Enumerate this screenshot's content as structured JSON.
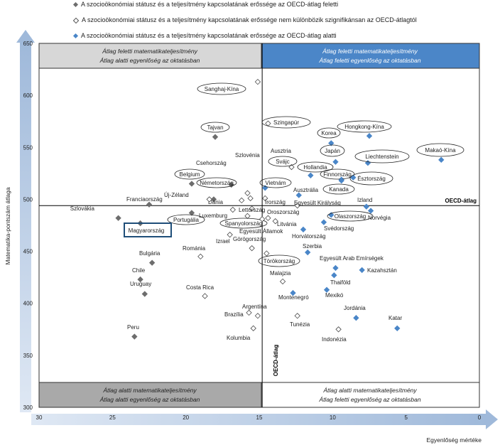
{
  "legend": [
    {
      "text": "A szocioökonómiai státusz és a teljesítmény kapcsolatának erőssége az OECD-átlag feletti",
      "color": "#6d6d6d"
    },
    {
      "text": "A szocioökonómiai státusz és a teljesítmény kapcsolatának erőssége nem különbözik szignifikánsan az OECD-átlagtól",
      "color": "#ffffff"
    },
    {
      "text": "A szocioökonómiai státusz és a teljesítmény kapcsolatának erőssége az OECD-átlag alatti",
      "color": "#4a86c8"
    }
  ],
  "quadrants": {
    "top_left": [
      "Átlag feletti matematikateljesítmény",
      "Átlag alatti egyenlőség az oktatásban"
    ],
    "top_right": [
      "Átlag feletti matematikateljesítmény",
      "Átlag feletti egyenlőség  az oktatásban"
    ],
    "bottom_left": [
      "Átlag alatti matematikateljesítmény",
      "Átlag alatti egyenlőség az oktatásban"
    ],
    "bottom_right": [
      "Átlag alatti matematikateljesítmény",
      "Átlag feletti egyenlőség  az oktatásban"
    ]
  },
  "chart_data": {
    "type": "scatter",
    "xlabel": "Egyenlőség mértéke",
    "ylabel": "Matematika-pontszám  átlaga",
    "xlim": [
      30,
      0
    ],
    "ylim": [
      300,
      650
    ],
    "x_ticks": [
      "30",
      "25",
      "20",
      "15",
      "10",
      "5",
      "0"
    ],
    "y_ticks": [
      "300",
      "350",
      "400",
      "450",
      "500",
      "550",
      "600",
      "650"
    ],
    "reference_lines": {
      "oecd_mean_score": {
        "value": 494,
        "label": "OECD-átlag"
      },
      "oecd_mean_equity": {
        "value": 14.8,
        "label": "OECD-átlag"
      }
    },
    "highlight": "Magyarország",
    "series": [
      {
        "category": "above",
        "points": [
          {
            "label": "Szlovákia",
            "x": 24.6,
            "y": 482
          },
          {
            "label": "Magyarország",
            "x": 23.1,
            "y": 477
          },
          {
            "label": "Franciaország",
            "x": 22.5,
            "y": 495
          },
          {
            "label": "Bulgária",
            "x": 22.3,
            "y": 439
          },
          {
            "label": "Chile",
            "x": 23.1,
            "y": 423
          },
          {
            "label": "Uruguay",
            "x": 22.8,
            "y": 409
          },
          {
            "label": "Peru",
            "x": 23.5,
            "y": 368
          },
          {
            "label": "Tajvan",
            "x": 18.0,
            "y": 560
          },
          {
            "label": "Belgium",
            "x": 19.6,
            "y": 515
          },
          {
            "label": "Portugália",
            "x": 19.6,
            "y": 487
          },
          {
            "label": "Dánia",
            "x": 18.1,
            "y": 500
          },
          {
            "label": "Németország",
            "x": 16.9,
            "y": 514
          }
        ]
      },
      {
        "category": "not_different",
        "points": [
          {
            "label": "Sanghaj-Kína",
            "x": 15.1,
            "y": 613
          },
          {
            "label": "Szingapúr",
            "x": 14.4,
            "y": 573
          },
          {
            "label": "Szlovénia",
            "x": 15.6,
            "y": 501
          },
          {
            "label": "Csehország",
            "x": 16.2,
            "y": 499
          },
          {
            "label": "Ausztria",
            "x": 15.8,
            "y": 506
          },
          {
            "label": "Svájc",
            "x": 12.8,
            "y": 531
          },
          {
            "label": "Új-Zéland",
            "x": 18.4,
            "y": 500
          },
          {
            "label": "Luxemburg",
            "x": 16.8,
            "y": 490
          },
          {
            "label": "Lettország",
            "x": 15.5,
            "y": 491
          },
          {
            "label": "Írország",
            "x": 14.6,
            "y": 501
          },
          {
            "label": "Oroszország",
            "x": 14.4,
            "y": 482
          },
          {
            "label": "Spanyolország",
            "x": 15.8,
            "y": 484
          },
          {
            "label": "Izrael",
            "x": 17.0,
            "y": 466
          },
          {
            "label": "Egyesült Államok",
            "x": 14.8,
            "y": 481
          },
          {
            "label": "Görögország",
            "x": 15.5,
            "y": 453
          },
          {
            "label": "Románia",
            "x": 19.0,
            "y": 445
          },
          {
            "label": "Litvánia",
            "x": 13.9,
            "y": 479
          },
          {
            "label": "Törökország",
            "x": 14.5,
            "y": 448
          },
          {
            "label": "Egyesült Királyság",
            "x": 12.4,
            "y": 494
          },
          {
            "label": "Malajzia",
            "x": 13.4,
            "y": 421
          },
          {
            "label": "Costa Rica",
            "x": 18.7,
            "y": 407
          },
          {
            "label": "Argentína",
            "x": 15.1,
            "y": 388
          },
          {
            "label": "Brazília",
            "x": 15.7,
            "y": 391
          },
          {
            "label": "Kolumbia",
            "x": 15.4,
            "y": 376
          },
          {
            "label": "Tunézia",
            "x": 12.4,
            "y": 388
          },
          {
            "label": "Indonézia",
            "x": 9.6,
            "y": 375
          }
        ]
      },
      {
        "category": "below",
        "points": [
          {
            "label": "Korea",
            "x": 10.1,
            "y": 554
          },
          {
            "label": "Hongkong-Kína",
            "x": 7.5,
            "y": 561
          },
          {
            "label": "Japán",
            "x": 9.8,
            "y": 536
          },
          {
            "label": "Liechtenstein",
            "x": 7.6,
            "y": 535
          },
          {
            "label": "Makaó-Kína",
            "x": 2.6,
            "y": 538
          },
          {
            "label": "Hollandia",
            "x": 11.5,
            "y": 523
          },
          {
            "label": "Finnország",
            "x": 9.4,
            "y": 519
          },
          {
            "label": "Észtország",
            "x": 8.6,
            "y": 521
          },
          {
            "label": "Kanada",
            "x": 9.4,
            "y": 518
          },
          {
            "label": "Vietnám",
            "x": 14.6,
            "y": 511
          },
          {
            "label": "Ausztrália",
            "x": 12.3,
            "y": 504
          },
          {
            "label": "Izland",
            "x": 7.7,
            "y": 493
          },
          {
            "label": "Norvégia",
            "x": 7.4,
            "y": 489
          },
          {
            "label": "Olaszország",
            "x": 10.1,
            "y": 485
          },
          {
            "label": "Svédország",
            "x": 10.6,
            "y": 478
          },
          {
            "label": "Horvátország",
            "x": 12.0,
            "y": 471
          },
          {
            "label": "Szerbia",
            "x": 11.7,
            "y": 449
          },
          {
            "label": "Egyesült Arab Emírségek",
            "x": 9.8,
            "y": 434
          },
          {
            "label": "Kazahsztán",
            "x": 8.0,
            "y": 432
          },
          {
            "label": "Thaiföld",
            "x": 9.9,
            "y": 427
          },
          {
            "label": "Montenegró",
            "x": 12.7,
            "y": 410
          },
          {
            "label": "Mexikó",
            "x": 10.4,
            "y": 413
          },
          {
            "label": "Jordánia",
            "x": 8.4,
            "y": 386
          },
          {
            "label": "Katar",
            "x": 5.6,
            "y": 376
          }
        ]
      }
    ]
  }
}
